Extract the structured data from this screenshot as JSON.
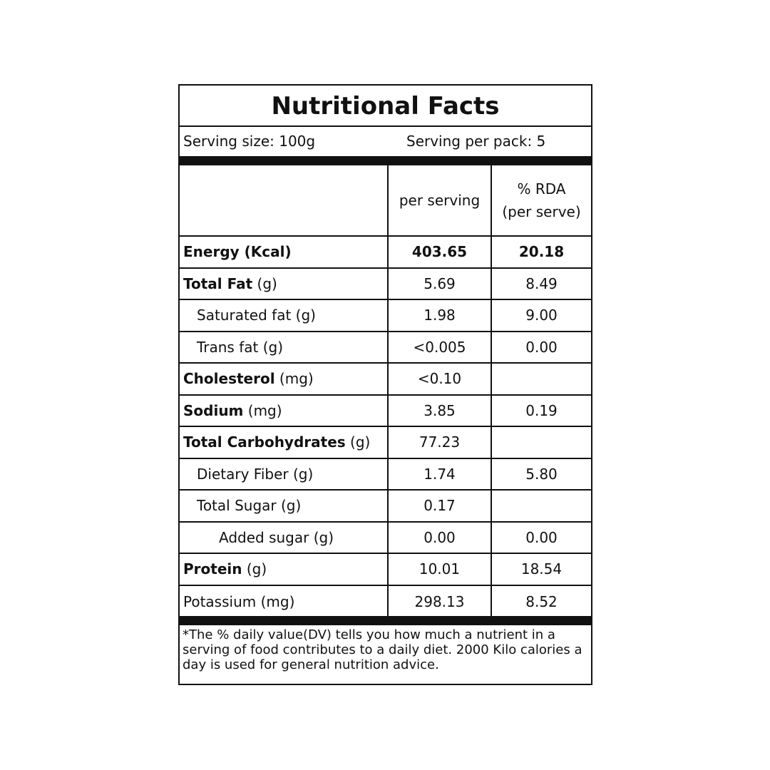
{
  "title": "Nutritional Facts",
  "serving_size": "Serving size: 100g",
  "serving_per_pack": "Serving per pack: 5",
  "columns": {
    "per_serving": "per serving",
    "rda_line1": "% RDA",
    "rda_line2": "(per serve)"
  },
  "rows": [
    {
      "bold": "Energy (Kcal)",
      "rest": "",
      "indent": 0,
      "value": "403.65",
      "rda": "20.18",
      "bold_values": true
    },
    {
      "bold": "Total Fat",
      "rest": " (g)",
      "indent": 0,
      "value": "5.69",
      "rda": "8.49"
    },
    {
      "bold": "",
      "rest": "Saturated fat (g)",
      "indent": 1,
      "value": "1.98",
      "rda": "9.00"
    },
    {
      "bold": "",
      "rest": "Trans fat (g)",
      "indent": 1,
      "value": "<0.005",
      "rda": "0.00"
    },
    {
      "bold": "Cholesterol",
      "rest": " (mg)",
      "indent": 0,
      "value": "<0.10",
      "rda": ""
    },
    {
      "bold": "Sodium",
      "rest": " (mg)",
      "indent": 0,
      "value": "3.85",
      "rda": "0.19"
    },
    {
      "bold": "Total Carbohydrates",
      "rest": " (g)",
      "indent": 0,
      "value": "77.23",
      "rda": ""
    },
    {
      "bold": "",
      "rest": "Dietary Fiber (g)",
      "indent": 1,
      "value": "1.74",
      "rda": "5.80"
    },
    {
      "bold": "",
      "rest": "Total Sugar (g)",
      "indent": 1,
      "value": "0.17",
      "rda": ""
    },
    {
      "bold": "",
      "rest": "Added sugar (g)",
      "indent": 2,
      "value": "0.00",
      "rda": "0.00"
    },
    {
      "bold": "Protein",
      "rest": " (g)",
      "indent": 0,
      "value": "10.01",
      "rda": "18.54"
    },
    {
      "bold": "",
      "rest": "Potassium (mg)",
      "indent": 0,
      "value": "298.13",
      "rda": "8.52"
    }
  ],
  "footnote": "*The % daily value(DV) tells you how much a nutrient in a serving of food contributes to a daily diet. 2000 Kilo calories a day is used for general nutrition advice."
}
